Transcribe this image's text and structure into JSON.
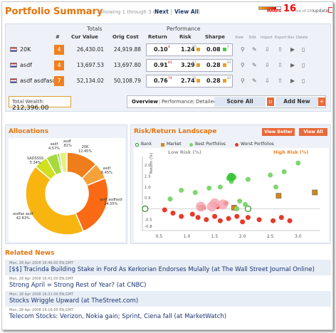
{
  "header": {
    "title": "Portfolio Summary",
    "showing": "(Showing 1 through 3 of 7",
    "next": "Next",
    "view_all": "View All",
    "marps_label": "MARPS",
    "marps_value": "16",
    "marps_of": "out of 100",
    "update": "update"
  },
  "table": {
    "group_totals": "Totals",
    "group_performance": "Performance",
    "col_num": "#",
    "col_cur": "Cur Value",
    "col_orig": "Orig Cost",
    "col_return": "Return",
    "col_risk": "Risk",
    "col_sharpe": "Sharpe",
    "col_actions": [
      "View",
      "Edit",
      "Import",
      "Export",
      "Run",
      "Delete"
    ],
    "rows": [
      {
        "name": "20K",
        "num": "4",
        "cur": "26,430.01",
        "orig": "24,919.88",
        "ret": "0.10",
        "ret_rank": "4",
        "risk": "1.24",
        "risk_rank": "80",
        "sharpe": "0.08",
        "sharpe_rank": "9"
      },
      {
        "name": "asdf",
        "num": "4",
        "cur": "13,697.53",
        "orig": "13,697.80",
        "ret": "0.91",
        "ret_rank": "81",
        "risk": "3.29",
        "risk_rank": "47",
        "sharpe": "0.28",
        "sharpe_rank": "82"
      },
      {
        "name": "asdf asdfasdf",
        "num": "7",
        "cur": "52,134.02",
        "orig": "50,108.79",
        "ret": "0.76",
        "ret_rank": "74",
        "risk": "2.74",
        "risk_rank": "35",
        "sharpe": "0.28",
        "sharpe_rank": "82"
      }
    ],
    "total_label": "Total Wealth:",
    "total_value": "212,396.00",
    "tab_overview": "Overview",
    "tab_performance": "Performance",
    "tab_detailed": "Detailed",
    "score_all": "Score All",
    "add_new": "Add New"
  },
  "allocations": {
    "title": "Allocations",
    "slices": [
      {
        "label": "20K",
        "pct": "12.45%",
        "value": 12.45,
        "color": "#f07d1c"
      },
      {
        "label": "asdf",
        "pct": "6.45%",
        "value": 6.45,
        "color": "#f5a23a"
      },
      {
        "label": "asdf asdfasd",
        "pct": "24.55%",
        "value": 24.55,
        "color": "#fa6a14"
      },
      {
        "label": "asdfas asdf",
        "pct": "42.83%",
        "value": 42.83,
        "color": "#f8b510"
      },
      {
        "label": "SADSSSS",
        "pct": "5.34%",
        "value": 5.34,
        "color": "#cfe11e"
      },
      {
        "label": "asdf",
        "pct": "4.57%",
        "value": 4.57,
        "color": "#a7d93a"
      },
      {
        "label": "asdf",
        "pct": ".81%",
        "value": 0.81,
        "color": "#62c44c"
      },
      {
        "label": "",
        "pct": "",
        "value": 3.0,
        "color": "#e8f080"
      }
    ]
  },
  "risk_return": {
    "title": "Risk/Return Landscape",
    "view_better": "View Better",
    "view_all": "View All",
    "legend": [
      {
        "label": "Bank",
        "color": "#2a8a2a"
      },
      {
        "label": "Market",
        "color": "#d08a1a"
      },
      {
        "label": "Best Portfolios",
        "color": "#7fd66f"
      },
      {
        "label": "Worst Portfolios",
        "color": "#e63a2a"
      }
    ],
    "low_risk": "Low Risk",
    "high_risk": "High Risk",
    "pct_sign": "(%)",
    "y_label": "Return (%)"
  },
  "chart_data": {
    "type": "scatter",
    "title": "Risk/Return Landscape",
    "xlabel": "",
    "ylabel": "Return (%)",
    "xlim": [
      0.2,
      3.4
    ],
    "ylim": [
      -1.0,
      2.4
    ],
    "x_ticks": [
      "0.5",
      "1.0",
      "1.5",
      "2.0",
      "2.5",
      "3.0"
    ],
    "y_ticks": [
      "2.0",
      "1.5",
      "1.0",
      "0.5",
      "0",
      "-0.5",
      "-0.8"
    ],
    "series": [
      {
        "name": "Bank",
        "points": [
          [
            0.25,
            0.0
          ],
          [
            2.1,
            0.0
          ]
        ]
      },
      {
        "name": "Market",
        "points": [
          [
            1.25,
            0.05
          ],
          [
            1.85,
            0.05
          ],
          [
            2.65,
            0.6
          ],
          [
            3.3,
            0.75
          ]
        ]
      },
      {
        "name": "Best Portfolios",
        "points": [
          [
            0.7,
            0.45
          ],
          [
            0.9,
            0.85
          ],
          [
            1.15,
            0.75
          ],
          [
            1.4,
            0.95
          ],
          [
            1.6,
            1.0
          ],
          [
            1.75,
            1.4
          ],
          [
            1.85,
            1.45
          ],
          [
            2.1,
            1.35
          ],
          [
            2.5,
            1.55
          ],
          [
            2.75,
            1.7
          ],
          [
            3.0,
            2.1
          ],
          [
            2.6,
            1.0
          ],
          [
            1.95,
            0.35
          ],
          [
            2.05,
            0.2
          ],
          [
            1.9,
            0.0
          ],
          [
            1.8,
            1.25
          ]
        ]
      },
      {
        "name": "Worst Portfolios",
        "points": [
          [
            0.6,
            -0.05
          ],
          [
            0.75,
            -0.2
          ],
          [
            0.9,
            -0.35
          ],
          [
            1.1,
            -0.25
          ],
          [
            1.2,
            -0.4
          ],
          [
            1.35,
            -0.5
          ],
          [
            1.5,
            -0.35
          ],
          [
            1.6,
            -0.55
          ],
          [
            1.75,
            -0.45
          ],
          [
            1.9,
            -0.35
          ],
          [
            2.0,
            -0.6
          ],
          [
            2.1,
            -0.4
          ],
          [
            2.3,
            -0.5
          ],
          [
            2.55,
            -0.55
          ],
          [
            2.7,
            -0.4
          ],
          [
            2.85,
            -0.55
          ],
          [
            1.3,
            0.05
          ],
          [
            1.5,
            0.2
          ],
          [
            1.7,
            0.25
          ],
          [
            1.55,
            0.1
          ]
        ]
      },
      {
        "name": "Portfolios",
        "points": [
          [
            1.25,
            0.1
          ],
          [
            1.5,
            0.25
          ],
          [
            1.65,
            0.2
          ],
          [
            1.45,
            0.1
          ]
        ]
      }
    ]
  },
  "news": {
    "title": "Related News",
    "items": [
      {
        "ts": "Mon, 28 Apr 2008 16:46:00 EN,GMT",
        "hl": "[$$] Tracinda Building Stake in Ford As Kerkorian Endorses Mulally (at The Wall Street Journal Online)"
      },
      {
        "ts": "Mon, 28 Apr 2008 16:41:00 EN,GMT",
        "hl": "Strong April = Strong Rest of Year? (at CNBC)"
      },
      {
        "ts": "Mon, 28 Apr 2008 16:31:00 EN,GMT",
        "hl": "Stocks Wriggle Upward (at TheStreet.com)"
      },
      {
        "ts": "Mon, 28 Apr 2008 16:16:00 EN,GMT",
        "hl": "Telecom Stocks: Verizon, Nokia gain; Sprint, Ciena fall (at MarketWatch)"
      }
    ]
  }
}
